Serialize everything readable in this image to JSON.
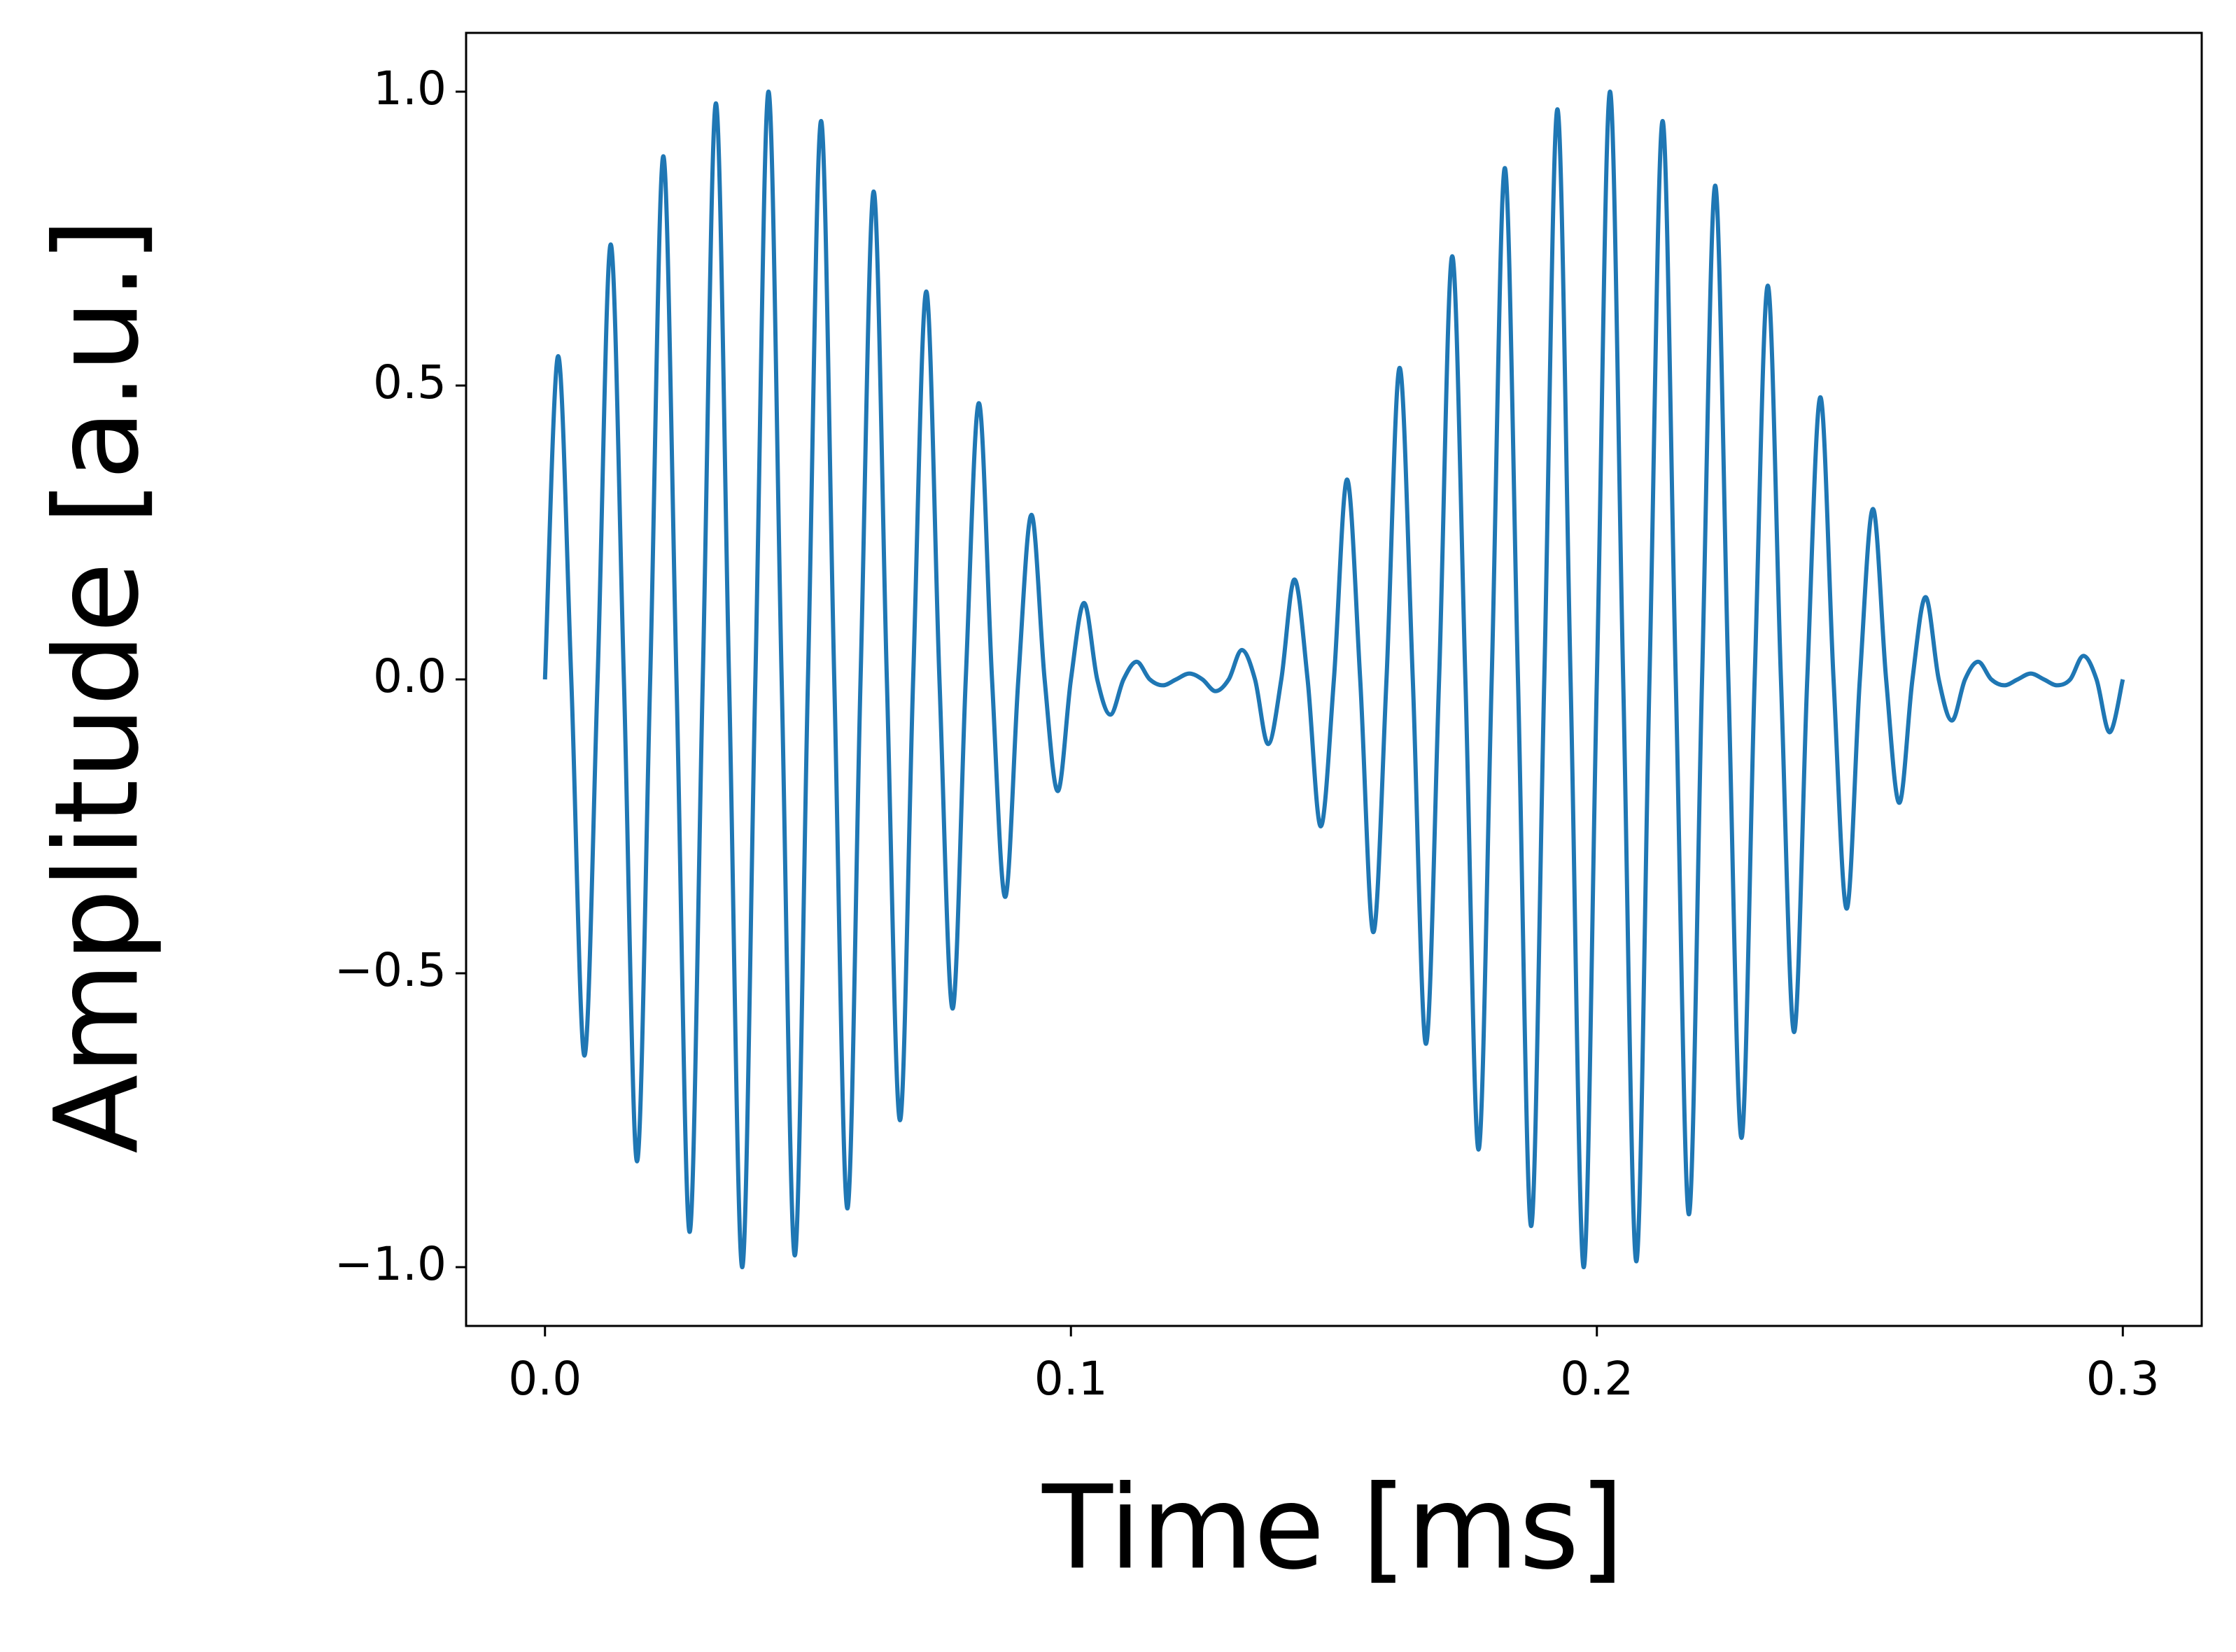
{
  "chart_data": {
    "type": "line",
    "xlabel": "Time [ms]",
    "ylabel": "Amplitude [a.u.]",
    "x": [
      0,
      0.0025,
      0.005,
      0.0075,
      0.01,
      0.0125,
      0.015,
      0.0175,
      0.02,
      0.0225,
      0.025,
      0.0275,
      0.03,
      0.0325,
      0.035,
      0.0375,
      0.04,
      0.0425,
      0.045,
      0.0475,
      0.05,
      0.0525,
      0.055,
      0.0575,
      0.06,
      0.0625,
      0.065,
      0.0675,
      0.07,
      0.0725,
      0.075,
      0.0775,
      0.08,
      0.0825,
      0.085,
      0.0875,
      0.09,
      0.0925,
      0.095,
      0.0975,
      0.1,
      0.1025,
      0.105,
      0.1075,
      0.11,
      0.1125,
      0.115,
      0.1175,
      0.12,
      0.1225,
      0.125,
      0.1275,
      0.13,
      0.1325,
      0.135,
      0.1375,
      0.14,
      0.1425,
      0.145,
      0.1475,
      0.15,
      0.1525,
      0.155,
      0.1575,
      0.16,
      0.1625,
      0.165,
      0.1675,
      0.17,
      0.1725,
      0.175,
      0.1775,
      0.18,
      0.1825,
      0.185,
      0.1875,
      0.19,
      0.1925,
      0.195,
      0.1975,
      0.2,
      0.2025,
      0.205,
      0.2075,
      0.21,
      0.2125,
      0.215,
      0.2175,
      0.22,
      0.2225,
      0.225,
      0.2275,
      0.23,
      0.2325,
      0.235,
      0.2375,
      0.24,
      0.2425,
      0.245,
      0.2475,
      0.25,
      0.2525,
      0.255,
      0.2575,
      0.26,
      0.2625,
      0.265,
      0.2675,
      0.27,
      0.2725,
      0.275,
      0.2775,
      0.28,
      0.2825,
      0.285,
      0.2875,
      0.29,
      0.2925,
      0.295,
      0.2975,
      0.3
    ],
    "series": [
      {
        "color": "#1f77b4",
        "values": [
          0,
          0.55,
          0,
          -0.64,
          0,
          0.74,
          0,
          -0.82,
          0,
          0.89,
          0,
          -0.94,
          0,
          0.98,
          0,
          -1.0,
          0,
          1.0,
          0,
          -0.98,
          0,
          0.95,
          0,
          -0.9,
          0,
          0.83,
          0,
          -0.75,
          0,
          0.66,
          0,
          -0.56,
          0,
          0.47,
          0,
          -0.37,
          0,
          0.28,
          0,
          -0.19,
          0,
          0.13,
          0,
          -0.06,
          0,
          0.03,
          0,
          -0.01,
          0,
          0.01,
          0,
          -0.02,
          0,
          0.05,
          0,
          -0.11,
          0,
          0.17,
          0,
          -0.25,
          0,
          0.34,
          0,
          -0.43,
          0,
          0.53,
          0,
          -0.62,
          0,
          0.72,
          0,
          -0.8,
          0,
          0.87,
          0,
          -0.93,
          0,
          0.97,
          0,
          -1.0,
          0,
          1.0,
          0,
          -0.99,
          0,
          0.95,
          0,
          -0.91,
          0,
          0.84,
          0,
          -0.78,
          0,
          0.67,
          0,
          -0.6,
          0,
          0.48,
          0,
          -0.39,
          0,
          0.29,
          0,
          -0.21,
          0,
          0.14,
          0,
          -0.07,
          0,
          0.03,
          0,
          -0.01,
          0,
          0.01,
          0,
          -0.01,
          0,
          0.04,
          0,
          -0.09,
          0
        ]
      }
    ],
    "xlim": [
      -0.015,
      0.315
    ],
    "ylim": [
      -1.1,
      1.1
    ],
    "xticks": [
      {
        "value": 0,
        "label": "0.0"
      },
      0.1,
      0.2,
      0.3
    ],
    "yticks": [
      {
        "value": -1,
        "label": "−1.0"
      },
      {
        "value": -0.5,
        "label": "−0.5"
      },
      {
        "value": 0,
        "label": "0.0"
      },
      0.5,
      {
        "value": 1,
        "label": "1.0"
      }
    ]
  }
}
